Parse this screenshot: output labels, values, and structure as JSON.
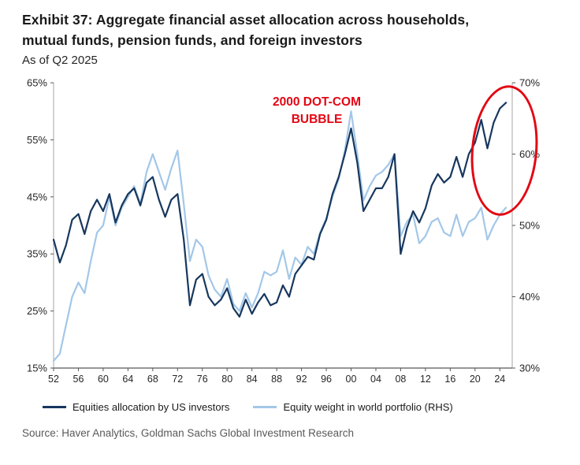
{
  "header": {
    "title_line1": "Exhibit 37: Aggregate financial asset allocation across households,",
    "title_line2": "mutual funds, pension funds, and foreign investors",
    "subtitle": "As of Q2 2025"
  },
  "annotation": {
    "line1": "2000 DOT-COM",
    "line2": "BUBBLE",
    "color": "#e30613"
  },
  "legend": [
    {
      "label": "Equities allocation by US investors",
      "color": "#17375e"
    },
    {
      "label": "Equity weight in world portfolio (RHS)",
      "color": "#a3c7e8"
    }
  ],
  "source": "Source: Haver Analytics, Goldman Sachs Global Investment Research",
  "chart_data": {
    "type": "line",
    "title": "Exhibit 37: Aggregate financial asset allocation across households, mutual funds, pension funds, and foreign investors",
    "subtitle": "As of Q2 2025",
    "grid": false,
    "legend_position": "bottom",
    "frequency": "annual",
    "start_year": 1952,
    "x_range": [
      1952,
      2026
    ],
    "x_ticks": [
      "52",
      "56",
      "60",
      "64",
      "68",
      "72",
      "76",
      "80",
      "84",
      "88",
      "92",
      "96",
      "00",
      "04",
      "08",
      "12",
      "16",
      "20",
      "24"
    ],
    "left_axis": {
      "ticks": [
        "65%",
        "55%",
        "45%",
        "35%",
        "25%",
        "15%"
      ],
      "range": [
        15,
        65
      ]
    },
    "right_axis": {
      "ticks": [
        "70%",
        "60%",
        "50%",
        "40%",
        "30%"
      ],
      "range": [
        30,
        70
      ]
    },
    "highlight": {
      "shape": "ellipse",
      "color": "#e30613",
      "x_span_years": [
        2019.5,
        2025.5
      ],
      "y_span_left_pct": [
        47,
        64.5
      ]
    },
    "series": [
      {
        "name": "Equities allocation by US investors",
        "axis": "left",
        "color": "#17375e",
        "values": [
          37.5,
          33.5,
          36.5,
          41,
          42,
          38.5,
          42.5,
          44.5,
          42.5,
          45.5,
          40.5,
          43.5,
          45.5,
          46.5,
          43.5,
          47.5,
          48.5,
          44.5,
          41.5,
          44.5,
          45.5,
          37.5,
          26,
          30.5,
          31.5,
          27.5,
          26,
          27,
          29,
          25.5,
          24,
          27,
          24.5,
          26.5,
          28,
          26,
          26.5,
          29.5,
          27.5,
          31.5,
          33,
          34.5,
          34,
          38.5,
          41,
          45.5,
          48.5,
          52.5,
          57,
          51,
          42.5,
          44.5,
          46.5,
          46.5,
          48.5,
          52.5,
          35,
          39.5,
          42.5,
          40.5,
          43,
          47,
          49,
          47.5,
          48.5,
          52,
          48.5,
          52.5,
          54.5,
          58.5,
          53.5,
          58,
          60.5,
          61.5
        ]
      },
      {
        "name": "Equity weight in world portfolio (RHS)",
        "axis": "right",
        "color": "#a3c7e8",
        "values": [
          31,
          32,
          36,
          40,
          42,
          40.5,
          45,
          49,
          50,
          54,
          50,
          52.5,
          54,
          55.5,
          53,
          57.5,
          60,
          57.5,
          55,
          58,
          60.5,
          53,
          45,
          48,
          47,
          43,
          41,
          40,
          42.5,
          39,
          38,
          40.5,
          38.5,
          40.5,
          43.5,
          43,
          43.5,
          46.5,
          42.5,
          45.5,
          44.5,
          47,
          46,
          49,
          51,
          54,
          56.5,
          60.5,
          66,
          60,
          53.5,
          55.5,
          57,
          57.5,
          58.5,
          60,
          48.5,
          50.5,
          51.5,
          47.5,
          48.5,
          50.5,
          51,
          49,
          48.5,
          51.5,
          48.5,
          50.5,
          51,
          52.5,
          48,
          50,
          51.5,
          52.5
        ]
      }
    ]
  }
}
